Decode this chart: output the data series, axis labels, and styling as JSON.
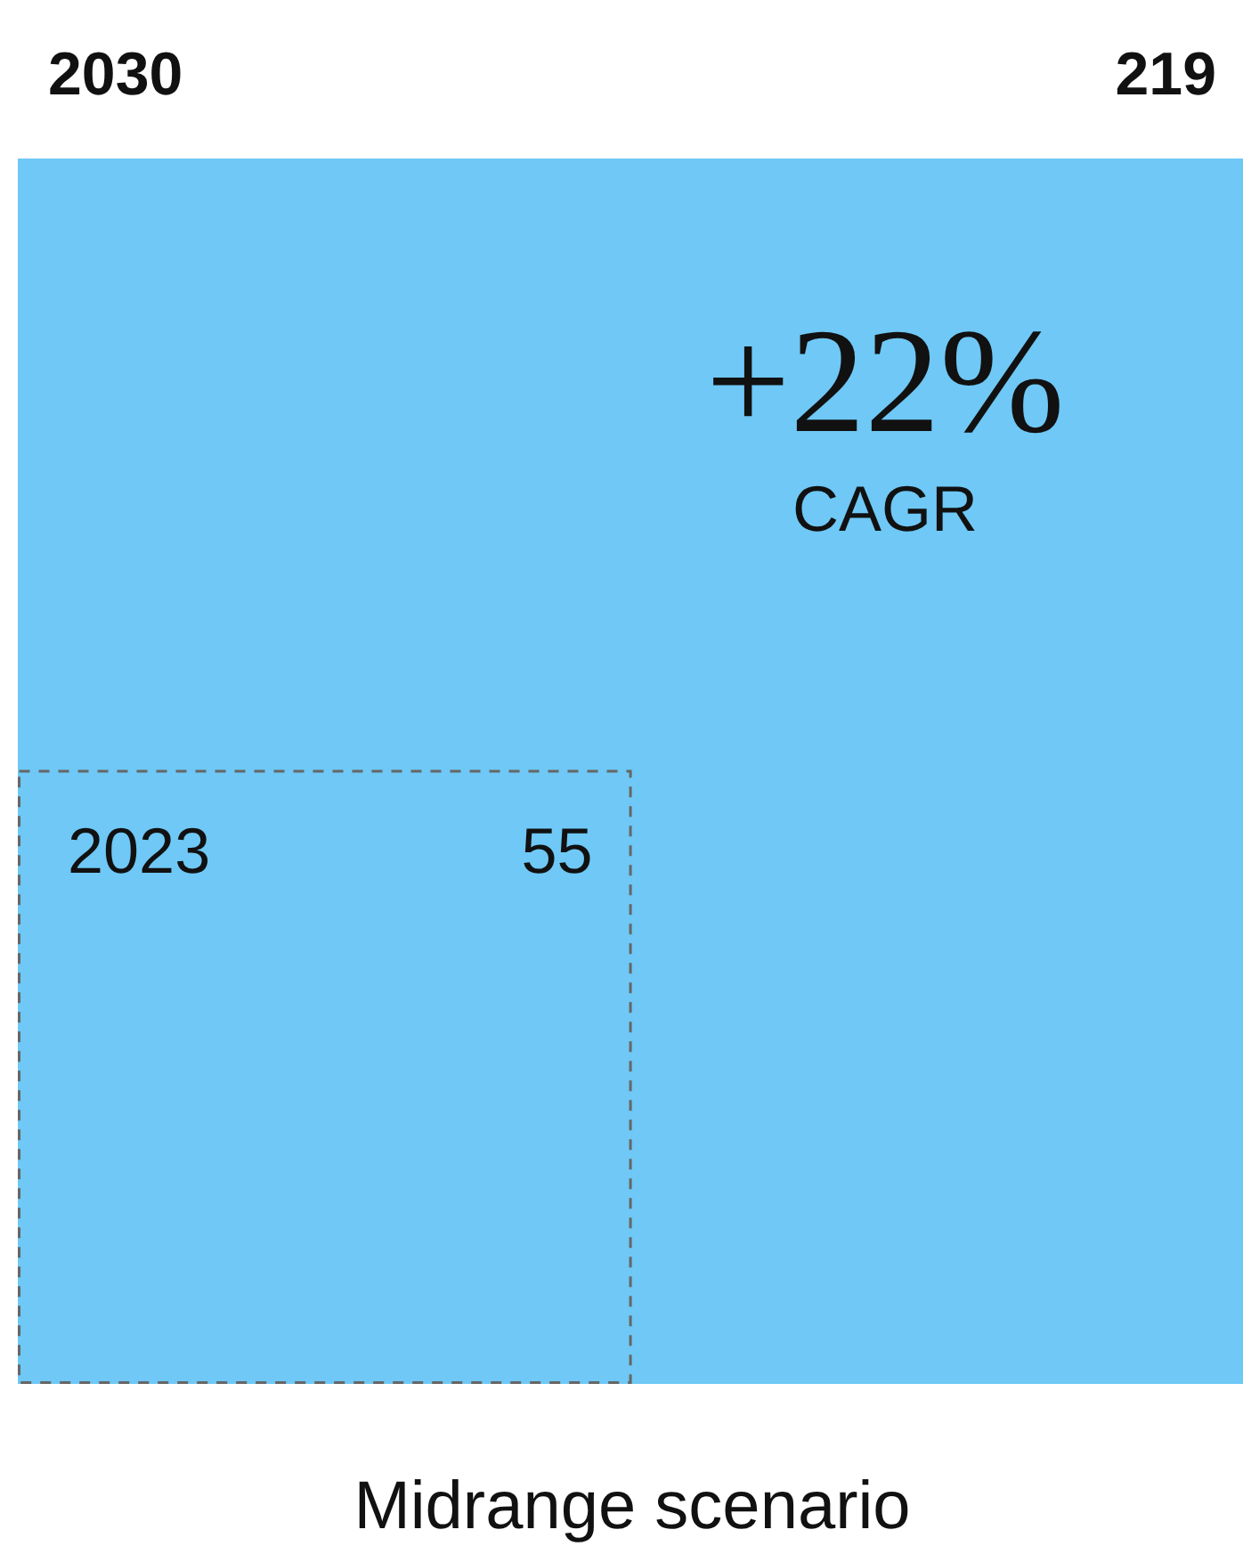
{
  "chart_data": {
    "type": "other",
    "categories": [
      "2030",
      "2023"
    ],
    "values": [
      219,
      55
    ],
    "colors": [
      "#6fc8f5",
      "#6fc8f5"
    ],
    "data_labels": true,
    "annotations": [
      "+22%",
      "CAGR"
    ],
    "xlabel": "Midrange scenario",
    "legend": false
  }
}
